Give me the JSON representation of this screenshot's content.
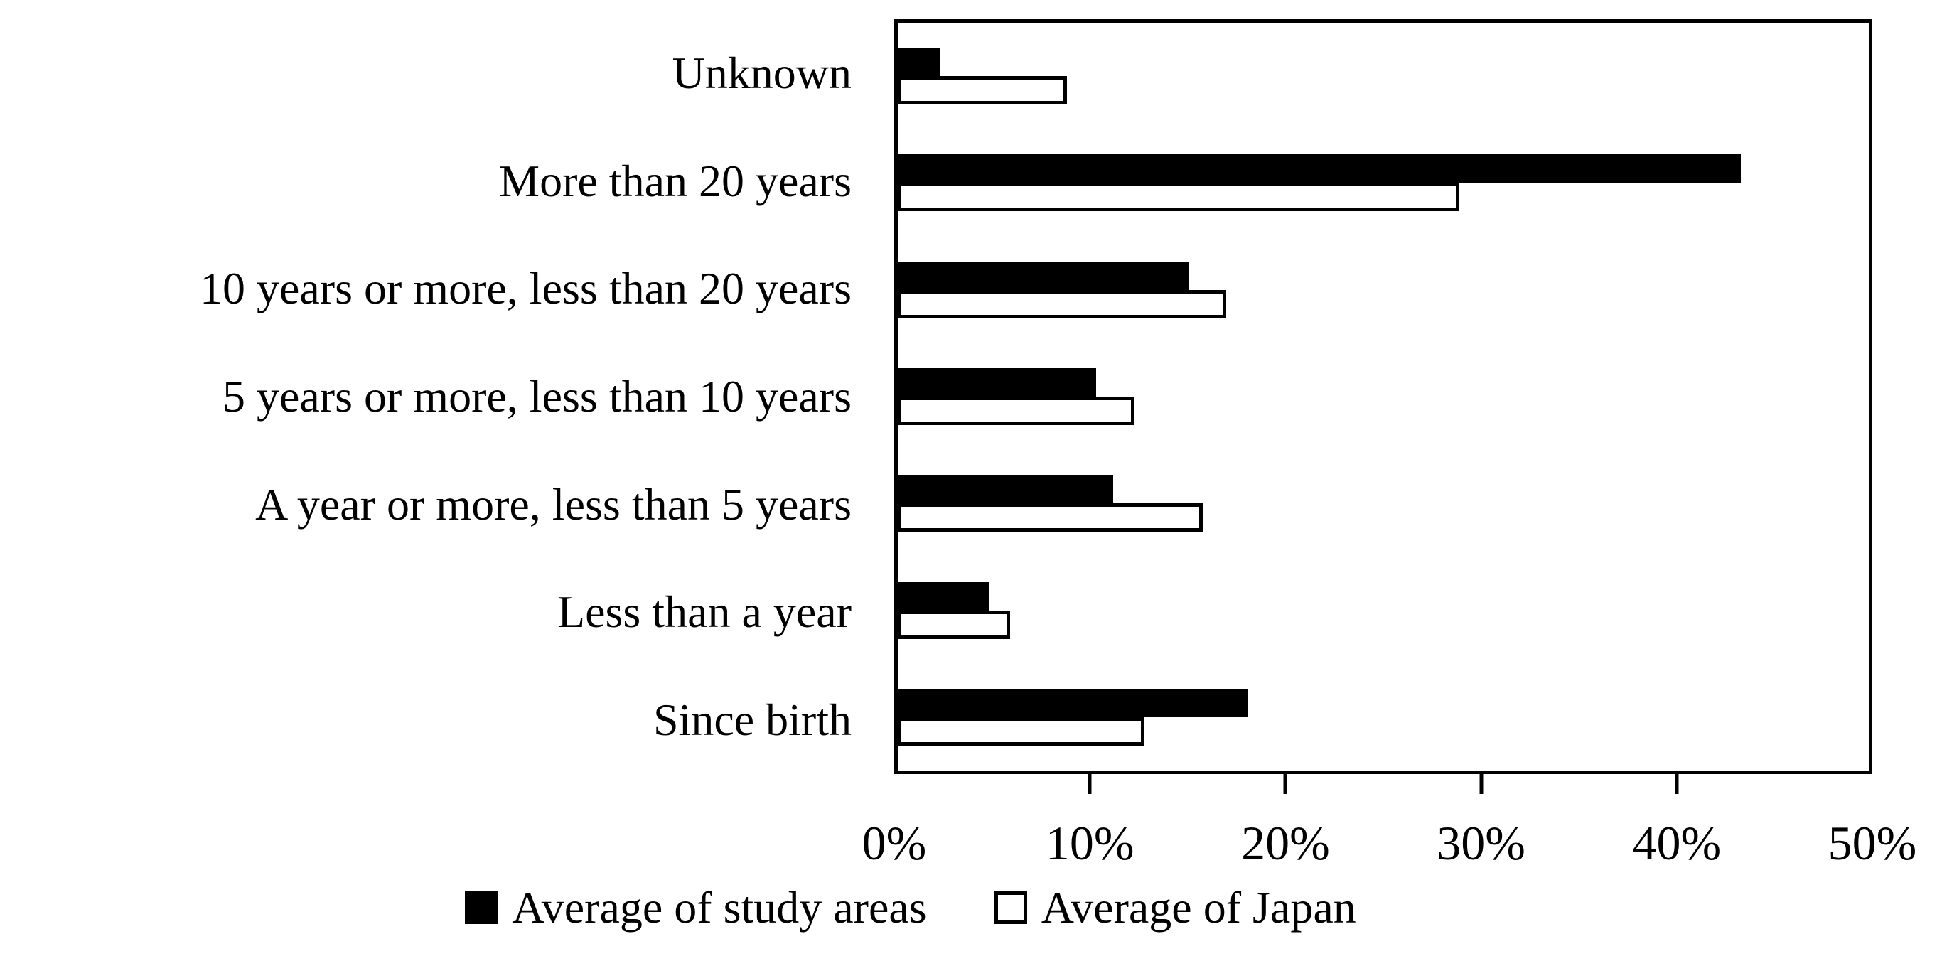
{
  "chart_data": {
    "type": "bar",
    "orientation": "horizontal",
    "title": "",
    "categories": [
      "Unknown",
      "More than 20 years",
      "10 years or more, less than 20 years",
      "5 years or more, less than 10 years",
      "A year or more, less than 5 years",
      "Less than a year",
      "Since birth"
    ],
    "series": [
      {
        "name": "Average of study areas",
        "style": "solid",
        "fill_color": "#000000",
        "values": [
          2.2,
          43.4,
          15.0,
          10.2,
          11.1,
          4.7,
          18.0
        ]
      },
      {
        "name": "Average of Japan",
        "style": "outlined",
        "fill_color": "#ffffff",
        "border_color": "#000000",
        "values": [
          8.7,
          28.9,
          16.9,
          12.2,
          15.7,
          5.8,
          12.7
        ]
      }
    ],
    "x_axis": {
      "min": 0,
      "max": 50,
      "unit": "%",
      "tick_labels": [
        "0%",
        "10%",
        "20%",
        "30%",
        "40%",
        "50%"
      ],
      "tick_values": [
        0,
        10,
        20,
        30,
        40,
        50
      ],
      "inner_tick_marks_at": [
        10,
        20,
        30,
        40
      ]
    },
    "legend_position": "bottom",
    "grid": false,
    "frame_color": "#000000",
    "background_color": "#ffffff"
  }
}
